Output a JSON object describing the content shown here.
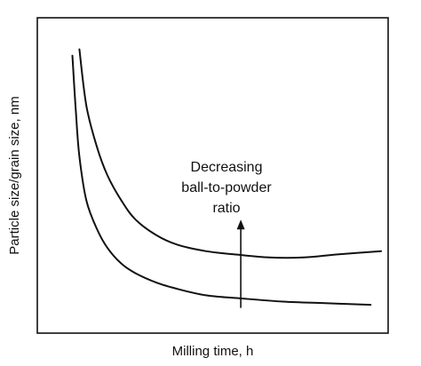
{
  "chart_data": {
    "type": "line",
    "title": "",
    "xlabel": "Milling time, h",
    "ylabel": "Particle size/grain size, nm",
    "xlim": [
      0,
      100
    ],
    "ylim": [
      0,
      100
    ],
    "grid": false,
    "legend": "none",
    "series": [
      {
        "x": [
          12,
          14,
          17,
          20,
          24,
          28,
          34,
          40,
          48,
          56,
          66,
          76,
          86,
          98
        ],
        "y": [
          90,
          72,
          59,
          50,
          42,
          36,
          31,
          28,
          26,
          25,
          24,
          24,
          25,
          26
        ]
      },
      {
        "x": [
          10,
          11,
          12,
          14,
          17,
          20,
          24,
          28,
          34,
          40,
          48,
          58,
          70,
          82,
          95
        ],
        "y": [
          88,
          70,
          56,
          42,
          33,
          27,
          22,
          19,
          16,
          14,
          12,
          11,
          10,
          9.5,
          9
        ]
      }
    ],
    "annotations": [
      {
        "lines": [
          "Decreasing",
          "ball-to-powder",
          "ratio"
        ],
        "arrow_from": [
          58,
          8
        ],
        "arrow_to": [
          58,
          36
        ]
      }
    ],
    "line_color": "#111111"
  }
}
